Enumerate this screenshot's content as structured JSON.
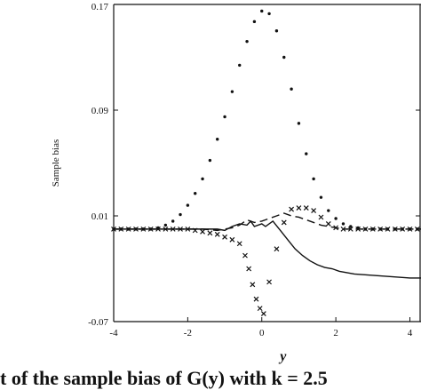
{
  "caption": "t of the sample bias of G(y) with k = 2.5",
  "chart_data": {
    "type": "scatter",
    "title": "",
    "xlabel": "y",
    "ylabel": "Sample bias",
    "xlim": [
      -4,
      4.3
    ],
    "ylim": [
      -0.07,
      0.17
    ],
    "xticks": [
      -4,
      -2,
      0,
      2,
      4
    ],
    "yticks": [
      -0.07,
      0.01,
      0.09,
      0.17
    ],
    "xtick_labels": [
      "-4",
      "-2",
      "0",
      "2",
      "4"
    ],
    "ytick_labels": [
      "-0.07",
      "0.01",
      "0.09",
      "0.17"
    ],
    "grid": false,
    "legend": "none",
    "series": [
      {
        "marker": "dots",
        "x": [
          -4.0,
          -3.8,
          -3.6,
          -3.4,
          -3.2,
          -3.0,
          -2.8,
          -2.6,
          -2.4,
          -2.2,
          -2.0,
          -1.8,
          -1.6,
          -1.4,
          -1.2,
          -1.0,
          -0.8,
          -0.6,
          -0.4,
          -0.2,
          0.0,
          0.2,
          0.4,
          0.6,
          0.8,
          1.0,
          1.2,
          1.4,
          1.6,
          1.8,
          2.0,
          2.2,
          2.4,
          2.6,
          2.8,
          3.0,
          3.2,
          3.4,
          3.6,
          3.8,
          4.0,
          4.2
        ],
        "y": [
          0.0,
          0.0,
          0.0,
          0.0,
          0.0,
          0.0,
          0.001,
          0.003,
          0.006,
          0.011,
          0.018,
          0.027,
          0.038,
          0.052,
          0.068,
          0.085,
          0.104,
          0.124,
          0.142,
          0.157,
          0.165,
          0.163,
          0.15,
          0.13,
          0.106,
          0.08,
          0.057,
          0.038,
          0.024,
          0.014,
          0.008,
          0.004,
          0.002,
          0.001,
          0.0,
          0.0,
          0.0,
          0.0,
          0.0,
          0.0,
          0.0,
          0.0
        ]
      },
      {
        "marker": "crosses",
        "x": [
          -4.0,
          -3.8,
          -3.6,
          -3.4,
          -3.2,
          -3.0,
          -2.8,
          -2.6,
          -2.4,
          -2.2,
          -2.0,
          -1.8,
          -1.6,
          -1.4,
          -1.2,
          -1.0,
          -0.8,
          -0.6,
          -0.45,
          -0.35,
          -0.25,
          -0.15,
          -0.05,
          0.05,
          0.2,
          0.4,
          0.6,
          0.8,
          1.0,
          1.2,
          1.4,
          1.6,
          1.8,
          2.0,
          2.2,
          2.4,
          2.6,
          2.8,
          3.0,
          3.2,
          3.4,
          3.6,
          3.8,
          4.0,
          4.2
        ],
        "y": [
          0.0,
          0.0,
          0.0,
          0.0,
          0.0,
          0.0,
          0.0,
          0.0,
          0.0,
          0.0,
          0.0,
          -0.001,
          -0.002,
          -0.003,
          -0.004,
          -0.006,
          -0.008,
          -0.011,
          -0.02,
          -0.03,
          -0.042,
          -0.053,
          -0.06,
          -0.064,
          -0.04,
          -0.015,
          0.005,
          0.015,
          0.016,
          0.016,
          0.014,
          0.009,
          0.004,
          0.001,
          0.0,
          0.0,
          0.0,
          0.0,
          0.0,
          0.0,
          0.0,
          0.0,
          0.0,
          0.0,
          0.0
        ]
      },
      {
        "marker": "dashed-line",
        "x": [
          -4.0,
          -3.0,
          -2.0,
          -1.6,
          -1.2,
          -0.8,
          -0.6,
          -0.4,
          -0.2,
          0.0,
          0.2,
          0.4,
          0.6,
          0.8,
          1.0,
          1.2,
          1.4,
          1.6,
          1.8,
          2.0,
          2.2,
          2.4,
          3.0,
          4.0,
          4.3
        ],
        "y": [
          0.0,
          0.0,
          0.0,
          0.0,
          -0.001,
          0.001,
          0.003,
          0.007,
          0.005,
          0.006,
          0.008,
          0.01,
          0.012,
          0.01,
          0.009,
          0.007,
          0.005,
          0.003,
          0.002,
          0.001,
          0.0,
          0.0,
          0.0,
          0.0,
          0.0
        ]
      },
      {
        "marker": "solid-line",
        "x": [
          -4.0,
          -3.0,
          -2.0,
          -1.5,
          -1.2,
          -1.0,
          -0.8,
          -0.6,
          -0.4,
          -0.3,
          -0.2,
          0.0,
          0.1,
          0.3,
          0.5,
          0.7,
          0.9,
          1.1,
          1.3,
          1.5,
          1.7,
          1.9,
          2.1,
          2.5,
          3.0,
          3.5,
          4.0,
          4.3
        ],
        "y": [
          0.0,
          0.0,
          0.0,
          0.0,
          0.0,
          -0.001,
          0.002,
          0.004,
          0.003,
          0.006,
          0.002,
          0.004,
          0.002,
          0.006,
          -0.001,
          -0.008,
          -0.015,
          -0.02,
          -0.024,
          -0.027,
          -0.029,
          -0.03,
          -0.032,
          -0.034,
          -0.035,
          -0.036,
          -0.037,
          -0.037
        ]
      }
    ]
  }
}
